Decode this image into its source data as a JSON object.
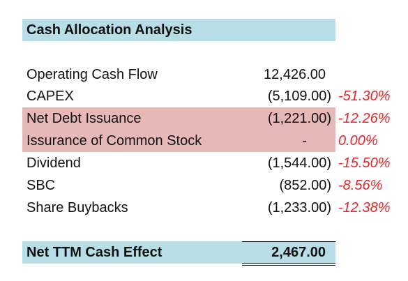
{
  "title": "Cash Allocation Analysis",
  "rows": [
    {
      "label": "Operating Cash Flow",
      "value": "12,426.00",
      "pct": ""
    },
    {
      "label": "CAPEX",
      "value": "(5,109.00)",
      "pct": "-51.30%"
    },
    {
      "label": "Net Debt Issuance",
      "value": "(1,221.00)",
      "pct": "-12.26%"
    },
    {
      "label": "Issurance of Common Stock",
      "value": "-",
      "pct": "0.00%"
    },
    {
      "label": "Dividend",
      "value": "(1,544.00)",
      "pct": "-15.50%"
    },
    {
      "label": "SBC",
      "value": "(852.00)",
      "pct": "-8.56%"
    },
    {
      "label": "Share Buybacks",
      "value": "(1,233.00)",
      "pct": "-12.38%"
    }
  ],
  "total": {
    "label": "Net TTM Cash Effect",
    "value": "2,467.00"
  },
  "colors": {
    "header_fill": "#b7dde6",
    "highlight_fill": "#e6b8b7",
    "percent_text": "#e3262a"
  }
}
